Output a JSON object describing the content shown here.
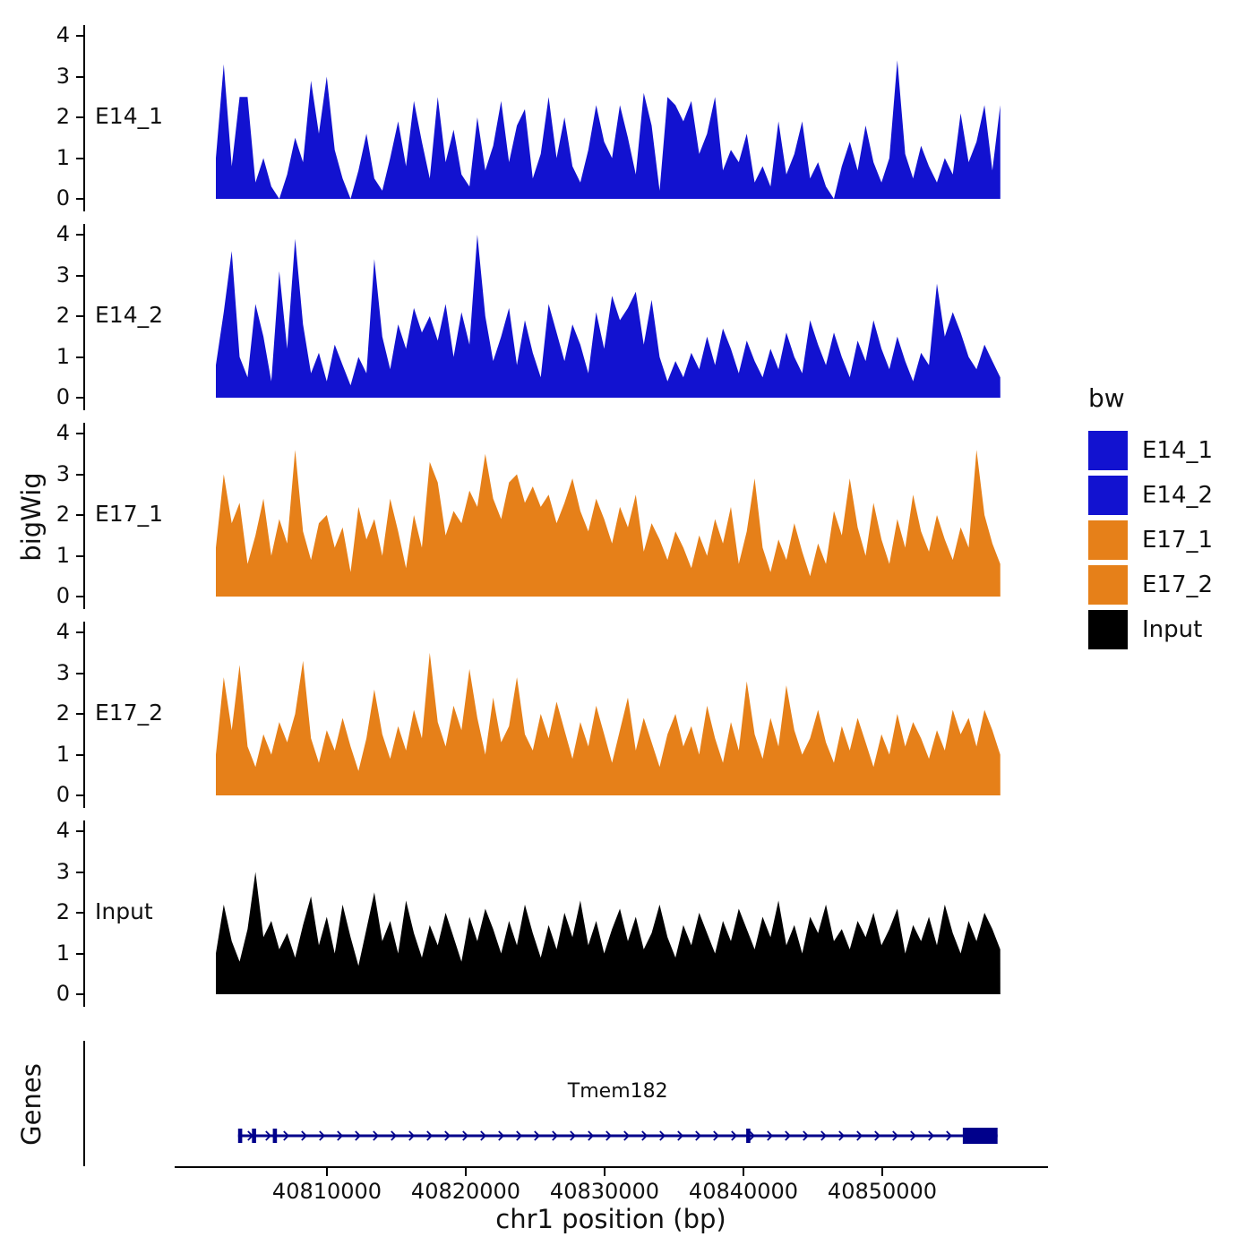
{
  "labels": {
    "ylabel": "bigWig",
    "genes": "Genes",
    "xlabel": "chr1 position (bp)"
  },
  "legend": {
    "title": "bw",
    "items": [
      {
        "label": "E14_1",
        "color": "#1212d0"
      },
      {
        "label": "E14_2",
        "color": "#1212d0"
      },
      {
        "label": "E17_1",
        "color": "#e68019"
      },
      {
        "label": "E17_2",
        "color": "#e68019"
      },
      {
        "label": "Input",
        "color": "#000000"
      }
    ]
  },
  "chart_data": {
    "type": "area",
    "title": "",
    "xlabel": "chr1 position (bp)",
    "ylabel": "bigWig",
    "grid": false,
    "legend_position": "right",
    "ylim": [
      0,
      4
    ],
    "y_ticks": [
      0,
      1,
      2,
      3,
      4
    ],
    "x_domain": [
      40802000,
      40858500
    ],
    "x_ticks": [
      40810000,
      40820000,
      40830000,
      40840000,
      40850000
    ],
    "tracks": [
      {
        "name": "E14_1",
        "color": "#1212d0",
        "values": [
          1.0,
          3.3,
          0.8,
          2.5,
          2.5,
          0.4,
          1.0,
          0.3,
          0.0,
          0.6,
          1.5,
          0.9,
          2.9,
          1.6,
          3.0,
          1.2,
          0.5,
          0.0,
          0.7,
          1.6,
          0.5,
          0.2,
          1.0,
          1.9,
          0.8,
          2.4,
          1.4,
          0.5,
          2.5,
          0.9,
          1.7,
          0.6,
          0.3,
          2.0,
          0.7,
          1.3,
          2.4,
          0.9,
          1.8,
          2.2,
          0.5,
          1.1,
          2.5,
          1.0,
          2.0,
          0.8,
          0.4,
          1.2,
          2.3,
          1.4,
          1.0,
          2.3,
          1.5,
          0.6,
          2.6,
          1.8,
          0.2,
          2.5,
          2.3,
          1.9,
          2.4,
          1.1,
          1.6,
          2.5,
          0.7,
          1.2,
          0.9,
          1.6,
          0.4,
          0.8,
          0.3,
          1.9,
          0.6,
          1.1,
          1.9,
          0.5,
          0.9,
          0.3,
          0.0,
          0.8,
          1.4,
          0.7,
          1.8,
          0.9,
          0.4,
          1.0,
          3.4,
          1.1,
          0.5,
          1.3,
          0.8,
          0.4,
          1.0,
          0.6,
          2.1,
          0.9,
          1.4,
          2.3,
          0.7,
          2.3
        ]
      },
      {
        "name": "E14_2",
        "color": "#1212d0",
        "values": [
          0.8,
          2.1,
          3.6,
          1.0,
          0.5,
          2.3,
          1.5,
          0.4,
          3.1,
          1.2,
          3.9,
          1.8,
          0.6,
          1.1,
          0.4,
          1.3,
          0.8,
          0.3,
          1.0,
          0.6,
          3.4,
          1.5,
          0.7,
          1.8,
          1.2,
          2.2,
          1.6,
          2.0,
          1.4,
          2.3,
          1.0,
          2.1,
          1.3,
          4.0,
          2.0,
          0.9,
          1.5,
          2.2,
          0.8,
          1.9,
          1.1,
          0.5,
          2.3,
          1.6,
          0.9,
          1.8,
          1.3,
          0.6,
          2.1,
          1.2,
          2.5,
          1.9,
          2.2,
          2.6,
          1.3,
          2.4,
          1.0,
          0.4,
          0.9,
          0.5,
          1.1,
          0.7,
          1.5,
          0.8,
          1.7,
          1.2,
          0.6,
          1.4,
          0.9,
          0.5,
          1.2,
          0.7,
          1.6,
          1.0,
          0.6,
          1.9,
          1.3,
          0.8,
          1.6,
          1.0,
          0.5,
          1.4,
          0.9,
          1.9,
          1.2,
          0.7,
          1.5,
          0.9,
          0.4,
          1.1,
          0.8,
          2.8,
          1.5,
          2.1,
          1.6,
          1.0,
          0.7,
          1.3,
          0.9,
          0.5
        ]
      },
      {
        "name": "E17_1",
        "color": "#e68019",
        "values": [
          1.2,
          3.0,
          1.8,
          2.3,
          0.8,
          1.5,
          2.4,
          1.0,
          1.9,
          1.3,
          3.6,
          1.6,
          0.9,
          1.8,
          2.0,
          1.2,
          1.7,
          0.6,
          2.2,
          1.4,
          1.9,
          1.0,
          2.4,
          1.6,
          0.7,
          2.0,
          1.2,
          3.3,
          2.8,
          1.5,
          2.1,
          1.8,
          2.6,
          2.2,
          3.5,
          2.4,
          1.9,
          2.8,
          3.0,
          2.3,
          2.7,
          2.2,
          2.5,
          1.8,
          2.3,
          2.9,
          2.1,
          1.6,
          2.4,
          1.9,
          1.3,
          2.2,
          1.7,
          2.5,
          1.1,
          1.8,
          1.4,
          0.9,
          1.6,
          1.2,
          0.7,
          1.5,
          1.0,
          1.9,
          1.3,
          2.2,
          0.8,
          1.6,
          2.9,
          1.2,
          0.6,
          1.4,
          0.9,
          1.8,
          1.1,
          0.5,
          1.3,
          0.8,
          2.1,
          1.5,
          2.9,
          1.7,
          1.0,
          2.3,
          1.4,
          0.8,
          1.9,
          1.2,
          2.5,
          1.6,
          1.1,
          2.0,
          1.4,
          0.9,
          1.7,
          1.2,
          3.6,
          2.0,
          1.3,
          0.8
        ]
      },
      {
        "name": "E17_2",
        "color": "#e68019",
        "values": [
          1.0,
          2.9,
          1.6,
          3.2,
          1.2,
          0.7,
          1.5,
          1.0,
          1.8,
          1.3,
          2.0,
          3.3,
          1.4,
          0.8,
          1.6,
          1.1,
          1.9,
          1.2,
          0.6,
          1.4,
          2.6,
          1.5,
          0.9,
          1.7,
          1.1,
          2.1,
          1.4,
          3.5,
          1.8,
          1.2,
          2.2,
          1.6,
          3.1,
          1.9,
          1.0,
          2.4,
          1.3,
          1.7,
          2.9,
          1.5,
          1.1,
          2.0,
          1.4,
          2.3,
          1.6,
          0.9,
          1.8,
          1.2,
          2.2,
          1.5,
          0.8,
          1.6,
          2.4,
          1.1,
          1.9,
          1.3,
          0.7,
          1.5,
          2.0,
          1.2,
          1.7,
          1.0,
          2.2,
          1.4,
          0.8,
          1.8,
          1.1,
          2.8,
          1.5,
          0.9,
          1.9,
          1.2,
          2.7,
          1.6,
          1.0,
          1.4,
          2.1,
          1.3,
          0.8,
          1.7,
          1.1,
          1.9,
          1.3,
          0.7,
          1.5,
          1.0,
          2.0,
          1.2,
          1.8,
          1.4,
          0.9,
          1.6,
          1.1,
          2.1,
          1.5,
          1.9,
          1.2,
          2.1,
          1.6,
          1.0
        ]
      },
      {
        "name": "Input",
        "color": "#000000",
        "values": [
          1.0,
          2.2,
          1.3,
          0.8,
          1.6,
          3.0,
          1.4,
          1.8,
          1.1,
          1.5,
          0.9,
          1.7,
          2.4,
          1.2,
          1.9,
          1.0,
          2.2,
          1.4,
          0.7,
          1.6,
          2.5,
          1.3,
          1.8,
          1.0,
          2.3,
          1.5,
          0.9,
          1.7,
          1.2,
          2.0,
          1.4,
          0.8,
          1.9,
          1.3,
          2.1,
          1.6,
          1.0,
          1.8,
          1.2,
          2.2,
          1.5,
          0.9,
          1.7,
          1.1,
          2.0,
          1.4,
          2.3,
          1.2,
          1.8,
          1.0,
          1.6,
          2.1,
          1.3,
          1.9,
          1.1,
          1.5,
          2.2,
          1.4,
          0.9,
          1.7,
          1.2,
          2.0,
          1.5,
          1.0,
          1.8,
          1.3,
          2.1,
          1.6,
          1.1,
          1.9,
          1.4,
          2.3,
          1.2,
          1.7,
          1.0,
          1.9,
          1.5,
          2.2,
          1.3,
          1.6,
          1.1,
          1.8,
          1.4,
          2.0,
          1.2,
          1.6,
          2.1,
          1.0,
          1.7,
          1.3,
          1.9,
          1.2,
          2.2,
          1.5,
          1.0,
          1.8,
          1.3,
          2.0,
          1.6,
          1.1
        ]
      }
    ],
    "gene": {
      "name": "Tmem182",
      "color": "#00008b",
      "strand": "+",
      "start": 40803600,
      "end": 40858300,
      "exons": [
        [
          40803600,
          40803900
        ],
        [
          40804600,
          40804900
        ],
        [
          40806100,
          40806400
        ],
        [
          40840200,
          40840500
        ]
      ],
      "final_exon": [
        40855800,
        40858300
      ]
    }
  }
}
